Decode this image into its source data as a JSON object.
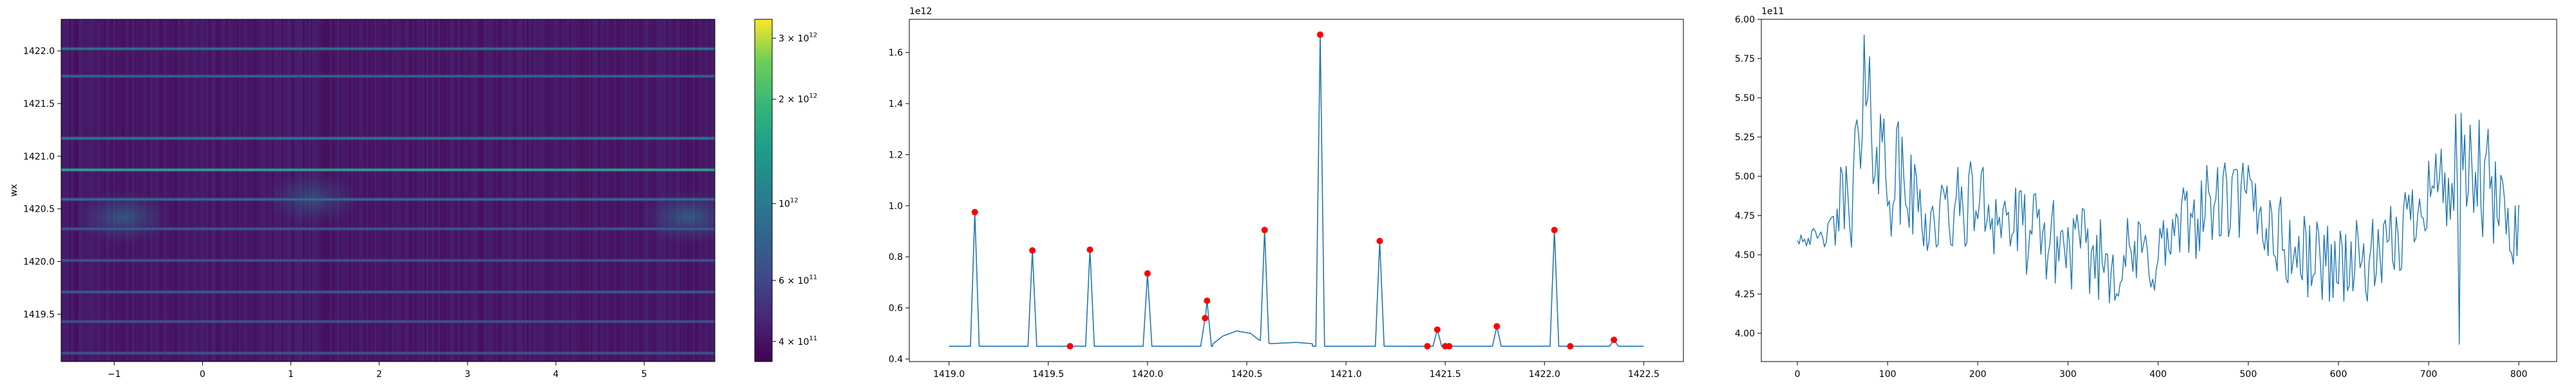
{
  "chart_data": [
    {
      "type": "heatmap",
      "ylabel": "wx",
      "xlim": [
        -1.6,
        5.8
      ],
      "ylim": [
        1419.05,
        1422.3
      ],
      "x_ticks": [
        -1,
        0,
        1,
        2,
        3,
        4,
        5
      ],
      "x_tick_labels": [
        "−1",
        "0",
        "1",
        "2",
        "3",
        "4",
        "5"
      ],
      "y_ticks": [
        1419.5,
        1420.0,
        1420.5,
        1421.0,
        1421.5,
        1422.0
      ],
      "y_tick_labels": [
        "1419.5",
        "1420.0",
        "1420.5",
        "1421.0",
        "1421.5",
        "1422.0"
      ],
      "colormap": "viridis",
      "colorbar": {
        "scale": "log",
        "range": [
          350000000000.0,
          3400000000000.0
        ],
        "ticks": [
          400000000000.0,
          600000000000.0,
          1000000000000.0,
          2000000000000.0,
          3000000000000.0
        ],
        "tick_labels": [
          {
            "base": "4 × 10",
            "exp": "11"
          },
          {
            "base": "6 × 10",
            "exp": "11"
          },
          {
            "base": "10",
            "exp": "12"
          },
          {
            "base": "2 × 10",
            "exp": "12"
          },
          {
            "base": "3 × 10",
            "exp": "12"
          }
        ]
      },
      "bright_bands": [
        {
          "y": 1422.02,
          "level": 0.42
        },
        {
          "y": 1421.76,
          "level": 0.36
        },
        {
          "y": 1421.17,
          "level": 0.46
        },
        {
          "y": 1420.87,
          "level": 0.68
        },
        {
          "y": 1420.59,
          "level": 0.4
        },
        {
          "y": 1420.31,
          "level": 0.32
        },
        {
          "y": 1420.01,
          "level": 0.3
        },
        {
          "y": 1419.71,
          "level": 0.33
        },
        {
          "y": 1419.43,
          "level": 0.3
        },
        {
          "y": 1419.13,
          "level": 0.3
        }
      ],
      "glow_regions": [
        {
          "x": -0.9,
          "y": 1420.42,
          "level": 0.28
        },
        {
          "x": 1.25,
          "y": 1420.6,
          "level": 0.22
        },
        {
          "x": 5.5,
          "y": 1420.42,
          "level": 0.3
        }
      ]
    },
    {
      "type": "line",
      "offset_text": "1e12",
      "xlim": [
        1418.8,
        1422.7
      ],
      "ylim": [
        0.39,
        1.73
      ],
      "x_ticks": [
        1419.0,
        1419.5,
        1420.0,
        1420.5,
        1421.0,
        1421.5,
        1422.0,
        1422.5
      ],
      "x_tick_labels": [
        "1419.0",
        "1419.5",
        "1420.0",
        "1420.5",
        "1421.0",
        "1421.5",
        "1422.0",
        "1422.5"
      ],
      "y_ticks": [
        0.4,
        0.6,
        0.8,
        1.0,
        1.2,
        1.4,
        1.6
      ],
      "y_tick_labels": [
        "0.4",
        "0.6",
        "0.8",
        "1.0",
        "1.2",
        "1.4",
        "1.6"
      ],
      "line_color": "#1f77b4",
      "marker_color": "#ff0000",
      "baseline": 0.45,
      "x_start": 1419.0,
      "x_end": 1422.5,
      "peaks": [
        {
          "x": 1419.13,
          "y": 0.975
        },
        {
          "x": 1419.42,
          "y": 0.825
        },
        {
          "x": 1419.71,
          "y": 0.828
        },
        {
          "x": 1420.0,
          "y": 0.735
        },
        {
          "x": 1420.29,
          "y": 0.56
        },
        {
          "x": 1420.3,
          "y": 0.628
        },
        {
          "x": 1420.59,
          "y": 0.905
        },
        {
          "x": 1420.87,
          "y": 1.67
        },
        {
          "x": 1421.17,
          "y": 0.862
        },
        {
          "x": 1421.46,
          "y": 0.515
        },
        {
          "x": 1421.76,
          "y": 0.528
        },
        {
          "x": 1422.05,
          "y": 0.905
        },
        {
          "x": 1422.35,
          "y": 0.475
        }
      ],
      "valley_markers": [
        {
          "x": 1419.61,
          "y": 0.45
        },
        {
          "x": 1421.41,
          "y": 0.45
        },
        {
          "x": 1421.5,
          "y": 0.45
        },
        {
          "x": 1421.52,
          "y": 0.45
        },
        {
          "x": 1422.13,
          "y": 0.45
        }
      ],
      "hump": [
        {
          "x": 1420.33,
          "y": 0.46
        },
        {
          "x": 1420.38,
          "y": 0.49
        },
        {
          "x": 1420.45,
          "y": 0.51
        },
        {
          "x": 1420.52,
          "y": 0.5
        },
        {
          "x": 1420.56,
          "y": 0.475
        },
        {
          "x": 1420.62,
          "y": 0.46
        },
        {
          "x": 1420.75,
          "y": 0.465
        },
        {
          "x": 1420.83,
          "y": 0.46
        }
      ]
    },
    {
      "type": "line",
      "offset_text": "1e11",
      "xlim": [
        -40,
        842
      ],
      "ylim": [
        3.82,
        6.0
      ],
      "x_ticks": [
        0,
        100,
        200,
        300,
        400,
        500,
        600,
        700,
        800
      ],
      "x_tick_labels": [
        "0",
        "100",
        "200",
        "300",
        "400",
        "500",
        "600",
        "700",
        "800"
      ],
      "y_ticks": [
        4.0,
        4.25,
        4.5,
        4.75,
        5.0,
        5.25,
        5.5,
        5.75,
        6.0
      ],
      "y_tick_labels": [
        "4.00",
        "4.25",
        "4.50",
        "4.75",
        "5.00",
        "5.25",
        "5.50",
        "5.75",
        "6.00"
      ],
      "line_color": "#1f77b4",
      "x_range": [
        0,
        800
      ],
      "y_envelope": [
        {
          "x": 0,
          "y": 4.62
        },
        {
          "x": 30,
          "y": 4.6
        },
        {
          "x": 60,
          "y": 4.95
        },
        {
          "x": 80,
          "y": 5.35
        },
        {
          "x": 100,
          "y": 5.05
        },
        {
          "x": 150,
          "y": 4.7
        },
        {
          "x": 200,
          "y": 4.85
        },
        {
          "x": 250,
          "y": 4.65
        },
        {
          "x": 300,
          "y": 4.55
        },
        {
          "x": 350,
          "y": 4.45
        },
        {
          "x": 400,
          "y": 4.5
        },
        {
          "x": 450,
          "y": 4.8
        },
        {
          "x": 500,
          "y": 4.85
        },
        {
          "x": 550,
          "y": 4.5
        },
        {
          "x": 600,
          "y": 4.45
        },
        {
          "x": 650,
          "y": 4.45
        },
        {
          "x": 700,
          "y": 4.95
        },
        {
          "x": 750,
          "y": 5.0
        },
        {
          "x": 800,
          "y": 4.65
        }
      ],
      "y_max": 5.9,
      "y_min": 3.93
    }
  ]
}
